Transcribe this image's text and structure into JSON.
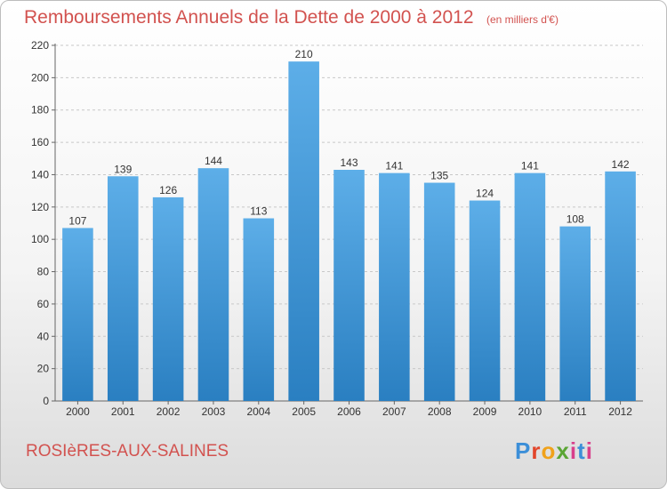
{
  "header": {
    "title": "Remboursements Annuels de la Dette de 2000 à 2012",
    "unit": "(en milliers d'€)"
  },
  "commune": "ROSIèRES-AUX-SALINES",
  "logo": "Proxiti",
  "colors": {
    "bar_top": "#5daee8",
    "bar_bottom": "#2a7fc1",
    "title": "#d2524f"
  },
  "chart_data": {
    "type": "bar",
    "title": "Remboursements Annuels de la Dette de 2000 à 2012",
    "categories": [
      "2000",
      "2001",
      "2002",
      "2003",
      "2004",
      "2005",
      "2006",
      "2007",
      "2008",
      "2009",
      "2010",
      "2011",
      "2012"
    ],
    "values": [
      107,
      139,
      126,
      144,
      113,
      210,
      143,
      141,
      135,
      124,
      141,
      108,
      142
    ],
    "ylim": [
      0,
      220
    ],
    "yticks": [
      0,
      20,
      40,
      60,
      80,
      100,
      120,
      140,
      160,
      180,
      200,
      220
    ],
    "grid": true,
    "xlabel": "",
    "ylabel": ""
  }
}
